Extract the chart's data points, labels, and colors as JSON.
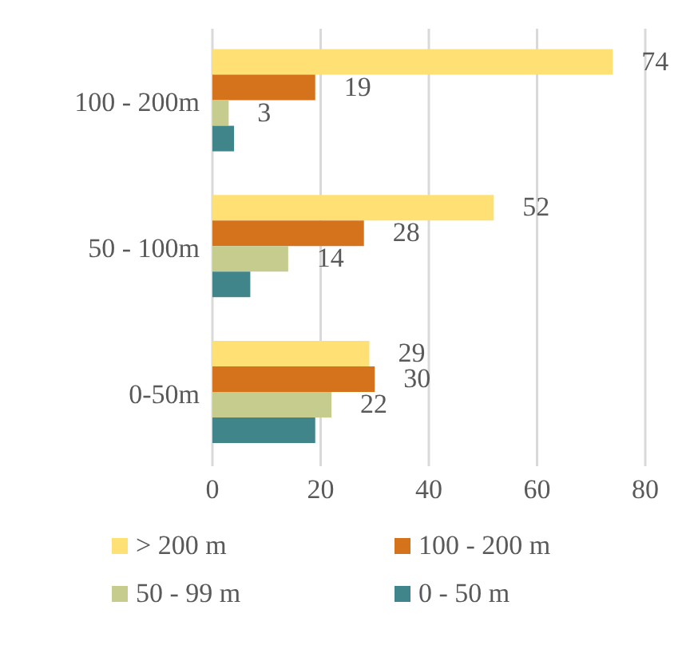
{
  "chart_data": {
    "type": "bar",
    "orientation": "horizontal",
    "categories": [
      "100 - 200m",
      "50 - 100m",
      "0-50m"
    ],
    "series": [
      {
        "name": "> 200 m",
        "color": "#ffe074",
        "values": [
          74,
          52,
          29
        ],
        "value_labels": [
          "74",
          "52",
          "29"
        ]
      },
      {
        "name": "100 - 200 m",
        "color": "#d4731c",
        "values": [
          19,
          28,
          30
        ],
        "value_labels": [
          "19",
          "28",
          "30"
        ]
      },
      {
        "name": "50 - 99 m",
        "color": "#c5cc8e",
        "values": [
          3,
          14,
          22
        ],
        "value_labels": [
          "3",
          "14",
          "22"
        ]
      },
      {
        "name": "0 - 50 m",
        "color": "#3f8589",
        "values": [
          4,
          7,
          19
        ],
        "value_labels": [
          null,
          null,
          null
        ]
      }
    ],
    "xlim": [
      0,
      80
    ],
    "xticks": [
      0,
      20,
      40,
      60,
      80
    ],
    "grid": "x",
    "legend": "bottom"
  }
}
